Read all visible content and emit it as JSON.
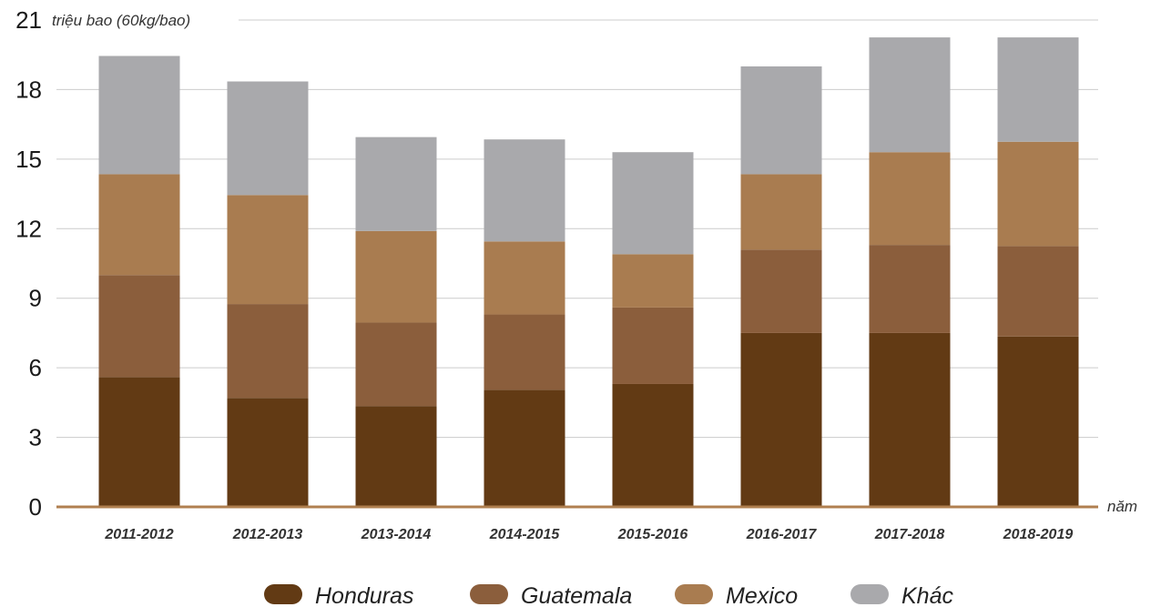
{
  "chart_data": {
    "type": "bar",
    "stacked": true,
    "ylabel": "triệu bao (60kg/bao)",
    "xlabel": "năm",
    "ylim": [
      0,
      21
    ],
    "yticks": [
      0,
      3,
      6,
      9,
      12,
      15,
      18,
      21
    ],
    "categories": [
      "2011-2012",
      "2012-2013",
      "2013-2014",
      "2014-2015",
      "2015-2016",
      "2016-2017",
      "2017-2018",
      "2018-2019"
    ],
    "series": [
      {
        "name": "Honduras",
        "color": "#623a14",
        "values": [
          5.6,
          4.7,
          4.35,
          5.05,
          5.3,
          7.5,
          7.5,
          7.35
        ]
      },
      {
        "name": "Guatemala",
        "color": "#8b5e3c",
        "values": [
          4.4,
          4.05,
          3.6,
          3.25,
          3.3,
          3.6,
          3.8,
          3.9
        ]
      },
      {
        "name": "Mexico",
        "color": "#a97c50",
        "values": [
          4.35,
          4.7,
          3.95,
          3.15,
          2.3,
          3.25,
          4.0,
          4.5
        ]
      },
      {
        "name": "Khác",
        "color": "#a9a9ac",
        "values": [
          5.1,
          4.9,
          4.05,
          4.4,
          4.4,
          4.65,
          4.95,
          4.5
        ]
      }
    ],
    "grid": true,
    "axis_color": "#b08050",
    "grid_color": "#cccccc",
    "legend_position": "bottom"
  }
}
